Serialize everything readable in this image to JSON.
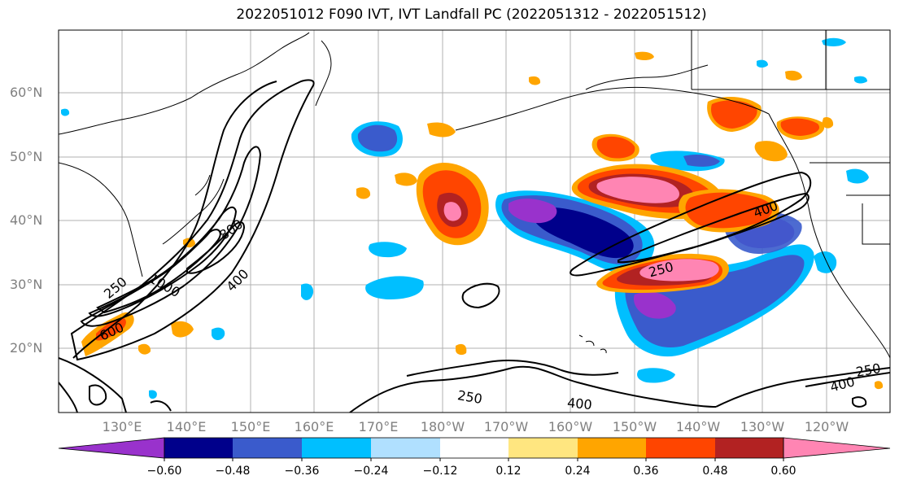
{
  "title": "2022051012 F090 IVT, IVT Landfall PC (2022051312 - 2022051512)",
  "latitude_labels": [
    "60°N",
    "50°N",
    "40°N",
    "30°N",
    "20°N"
  ],
  "longitude_labels": [
    "130°E",
    "140°E",
    "150°E",
    "160°E",
    "170°E",
    "180°W",
    "170°W",
    "160°W",
    "150°W",
    "140°W",
    "130°W",
    "120°W"
  ],
  "contour_labels": [
    "800",
    "400",
    "250",
    "1000",
    "600",
    "400",
    "250",
    "250",
    "400",
    "400",
    "250"
  ],
  "colorbar": {
    "tick_labels": [
      "−0.60",
      "−0.48",
      "−0.36",
      "−0.24",
      "−0.12",
      "0.12",
      "0.24",
      "0.36",
      "0.48",
      "0.60"
    ],
    "colors": [
      "#9932cc",
      "#00008b",
      "#3a5bcc",
      "#00bfff",
      "#b0e0ff",
      "#ffffff",
      "#ffe680",
      "#ffa500",
      "#ff4500",
      "#b22222",
      "#ff85b3"
    ]
  },
  "colors": {
    "coastline": "#000000",
    "contour": "#000000",
    "grid": "#b0b0b0",
    "axis_label": "#808080"
  }
}
